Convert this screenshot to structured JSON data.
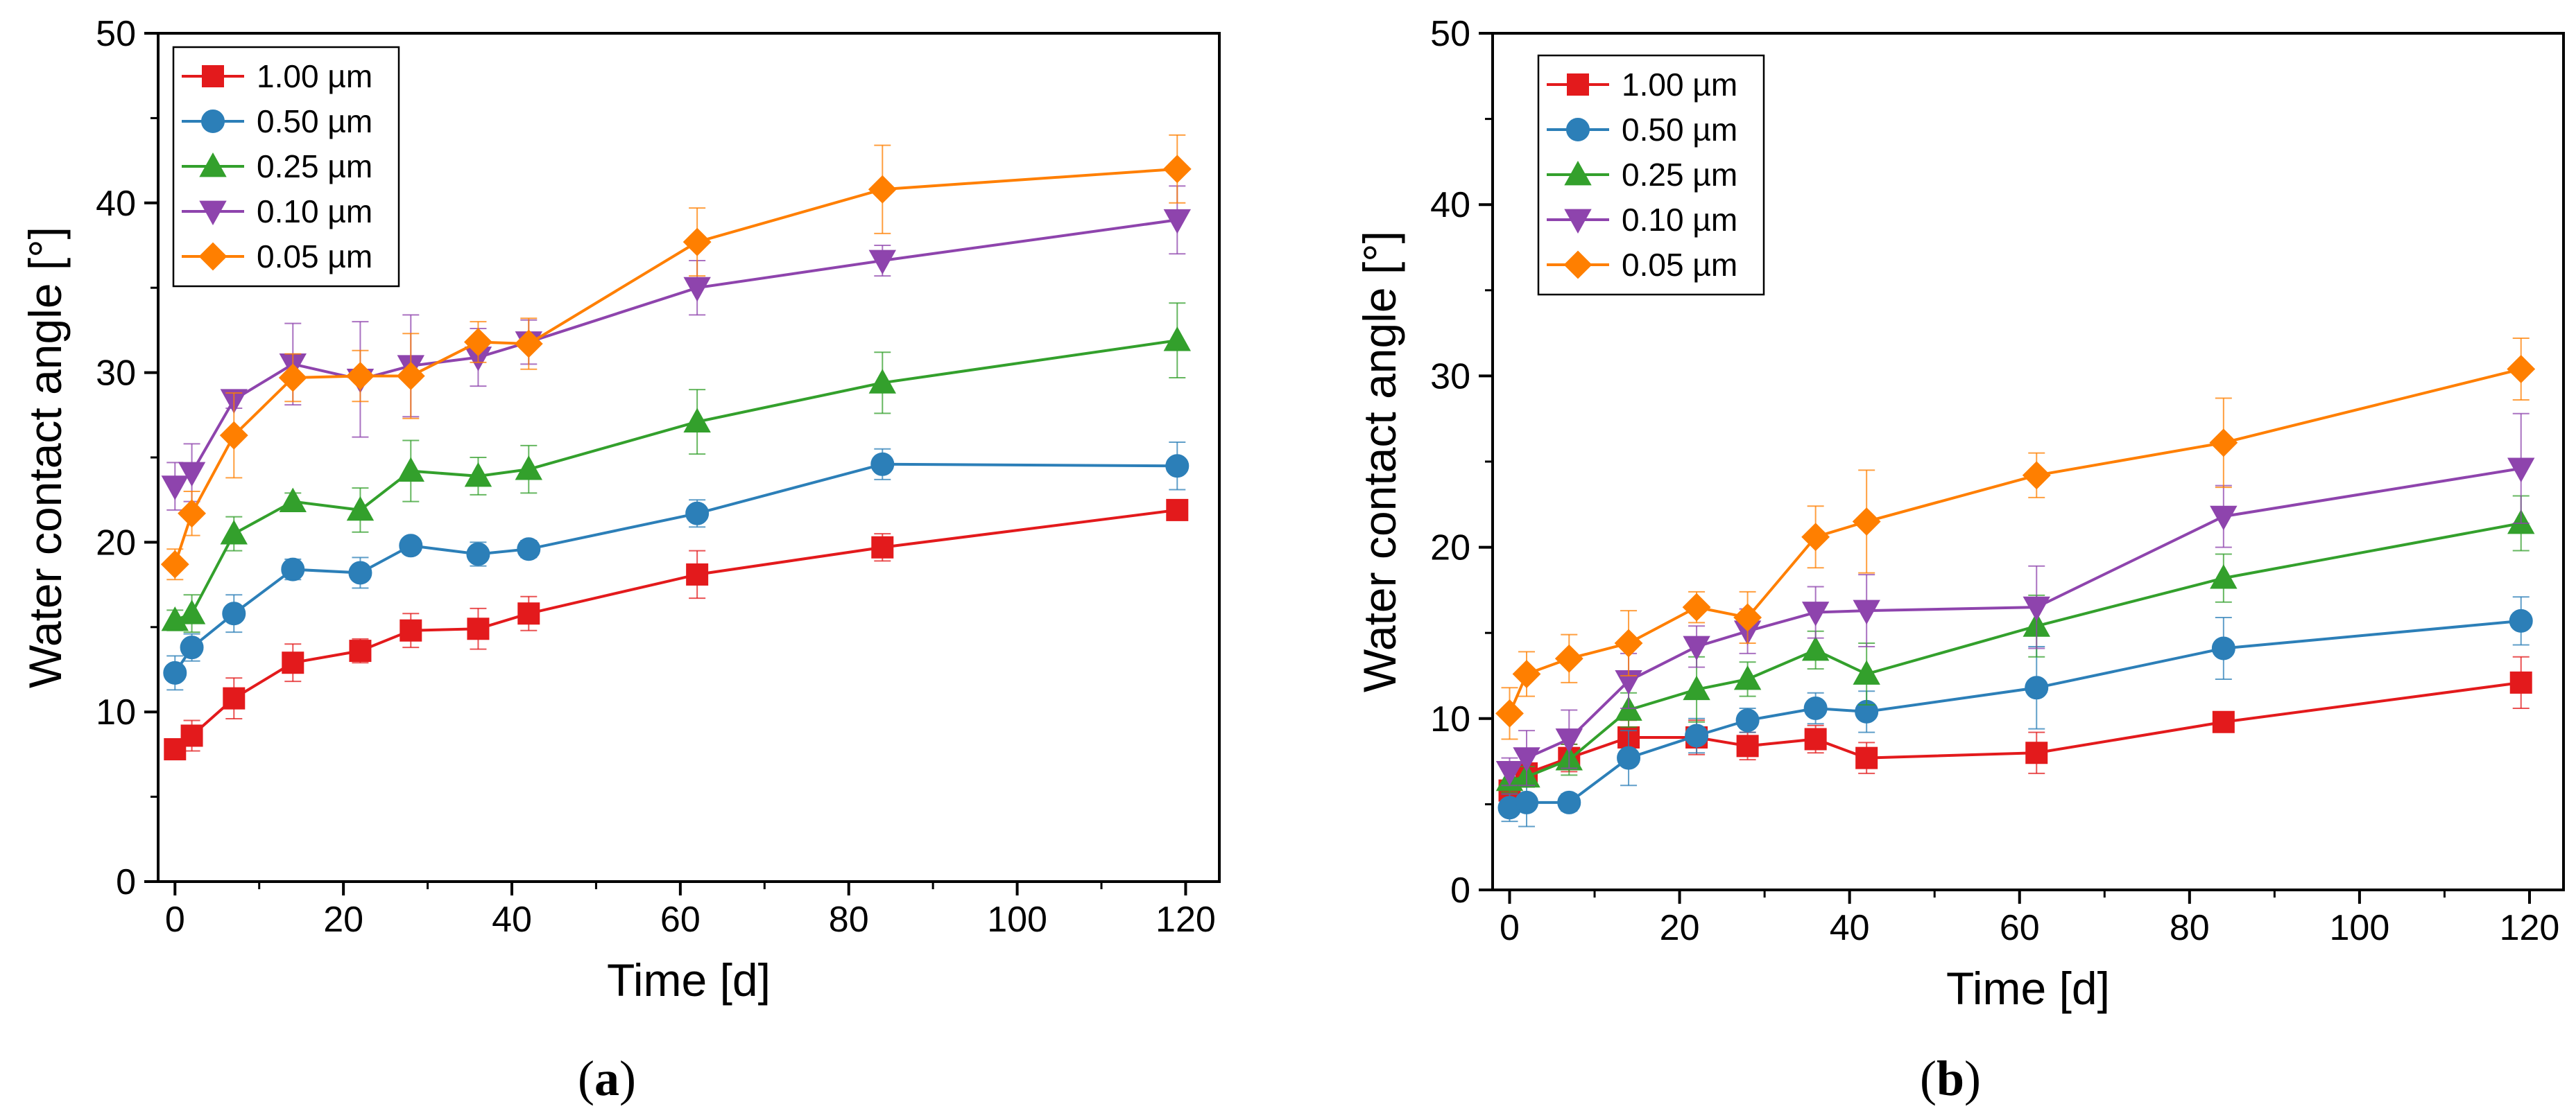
{
  "captions": [
    {
      "open": "(",
      "letter": "a",
      "close": ")"
    },
    {
      "open": "(",
      "letter": "b",
      "close": ")"
    }
  ],
  "colors": {
    "1.00 µm": "#e31a1c",
    "0.50 µm": "#2c7fb8",
    "0.25 µm": "#33a02c",
    "0.10 µm": "#8e44ad",
    "0.05 µm": "#ff7f00"
  },
  "chart_data": [
    {
      "type": "line",
      "title": "",
      "xlabel": "Time [d]",
      "ylabel": "Water contact angle [°]",
      "xlim": [
        -2,
        124
      ],
      "ylim": [
        0,
        50
      ],
      "xticks": [
        0,
        20,
        40,
        60,
        80,
        100,
        120
      ],
      "yticks": [
        0,
        10,
        20,
        30,
        40,
        50
      ],
      "legend_position": "top-left",
      "x": [
        0,
        2,
        7,
        14,
        22,
        28,
        36,
        42,
        62,
        84,
        119
      ],
      "series": [
        {
          "name": "1.00 µm",
          "marker": "square",
          "values": [
            7.8,
            8.6,
            10.8,
            12.9,
            13.6,
            14.8,
            14.9,
            15.8,
            18.1,
            19.7,
            21.9
          ],
          "errors": [
            0.5,
            0.9,
            1.2,
            1.1,
            0.7,
            1.0,
            1.2,
            1.0,
            1.4,
            0.8,
            0.6
          ]
        },
        {
          "name": "0.50 µm",
          "marker": "circle",
          "values": [
            12.3,
            13.8,
            15.8,
            18.4,
            18.2,
            19.8,
            19.3,
            19.6,
            21.7,
            24.6,
            24.5
          ],
          "errors": [
            1.0,
            0.8,
            1.1,
            0.6,
            0.9,
            0.4,
            0.7,
            0.5,
            0.8,
            0.9,
            1.4
          ]
        },
        {
          "name": "0.25 µm",
          "marker": "triangle-up",
          "values": [
            15.4,
            15.8,
            20.5,
            22.4,
            21.9,
            24.2,
            23.9,
            24.3,
            27.1,
            29.4,
            31.9
          ],
          "errors": [
            0.6,
            1.1,
            1.0,
            0.5,
            1.3,
            1.8,
            1.1,
            1.4,
            1.9,
            1.8,
            2.2
          ]
        },
        {
          "name": "0.10 µm",
          "marker": "triangle-down",
          "values": [
            23.3,
            24.1,
            28.4,
            30.5,
            29.6,
            30.4,
            30.9,
            31.8,
            35.0,
            36.6,
            39.0
          ],
          "errors": [
            1.4,
            1.7,
            0.5,
            2.4,
            3.4,
            3.0,
            1.7,
            1.3,
            1.6,
            0.9,
            2.0
          ]
        },
        {
          "name": "0.05 µm",
          "marker": "diamond",
          "values": [
            18.7,
            21.7,
            26.3,
            29.7,
            29.8,
            29.8,
            31.8,
            31.7,
            37.7,
            40.8,
            42.0
          ],
          "errors": [
            0.9,
            1.3,
            2.5,
            1.4,
            1.5,
            2.5,
            1.2,
            1.5,
            2.0,
            2.6,
            2.0
          ]
        }
      ]
    },
    {
      "type": "line",
      "title": "",
      "xlabel": "Time [d]",
      "ylabel": "Water contact angle [°]",
      "xlim": [
        -2,
        124
      ],
      "ylim": [
        0,
        50
      ],
      "xticks": [
        0,
        20,
        40,
        60,
        80,
        100,
        120
      ],
      "yticks": [
        0,
        10,
        20,
        30,
        40,
        50
      ],
      "legend_position": "top-left",
      "x": [
        0,
        2,
        7,
        14,
        22,
        28,
        36,
        42,
        62,
        84,
        119
      ],
      "series": [
        {
          "name": "1.00 µm",
          "marker": "square",
          "values": [
            5.8,
            6.8,
            7.7,
            8.9,
            8.9,
            8.4,
            8.8,
            7.7,
            8.0,
            9.8,
            12.1
          ],
          "errors": [
            1.2,
            0.6,
            0.8,
            1.0,
            1.0,
            0.8,
            0.8,
            0.9,
            1.2,
            0.4,
            1.5
          ]
        },
        {
          "name": "0.50 µm",
          "marker": "circle",
          "values": [
            4.8,
            5.1,
            5.1,
            7.7,
            9.0,
            9.9,
            10.6,
            10.4,
            11.8,
            14.1,
            15.7
          ],
          "errors": [
            0.8,
            1.4,
            0.5,
            1.6,
            1.0,
            0.7,
            0.9,
            1.2,
            2.4,
            1.8,
            1.4
          ]
        },
        {
          "name": "0.25 µm",
          "marker": "triangle-up",
          "values": [
            6.4,
            6.6,
            7.6,
            10.5,
            11.7,
            12.3,
            14.0,
            12.6,
            15.4,
            18.2,
            21.4
          ],
          "errors": [
            0.7,
            0.6,
            0.9,
            1.0,
            1.9,
            1.0,
            1.1,
            1.8,
            1.8,
            1.4,
            1.6
          ]
        },
        {
          "name": "0.10 µm",
          "marker": "triangle-down",
          "values": [
            6.9,
            7.7,
            8.8,
            12.2,
            14.2,
            15.1,
            16.2,
            16.3,
            16.5,
            21.8,
            24.6
          ],
          "errors": [
            0.8,
            1.6,
            1.7,
            1.6,
            1.2,
            1.3,
            1.5,
            2.1,
            2.4,
            1.8,
            3.2
          ]
        },
        {
          "name": "0.05 µm",
          "marker": "diamond",
          "values": [
            10.3,
            12.6,
            13.5,
            14.4,
            16.5,
            15.9,
            20.6,
            21.5,
            24.2,
            26.1,
            30.4
          ],
          "errors": [
            1.5,
            1.3,
            1.4,
            1.9,
            0.9,
            1.5,
            1.8,
            3.0,
            1.3,
            2.6,
            1.8
          ]
        }
      ]
    }
  ]
}
